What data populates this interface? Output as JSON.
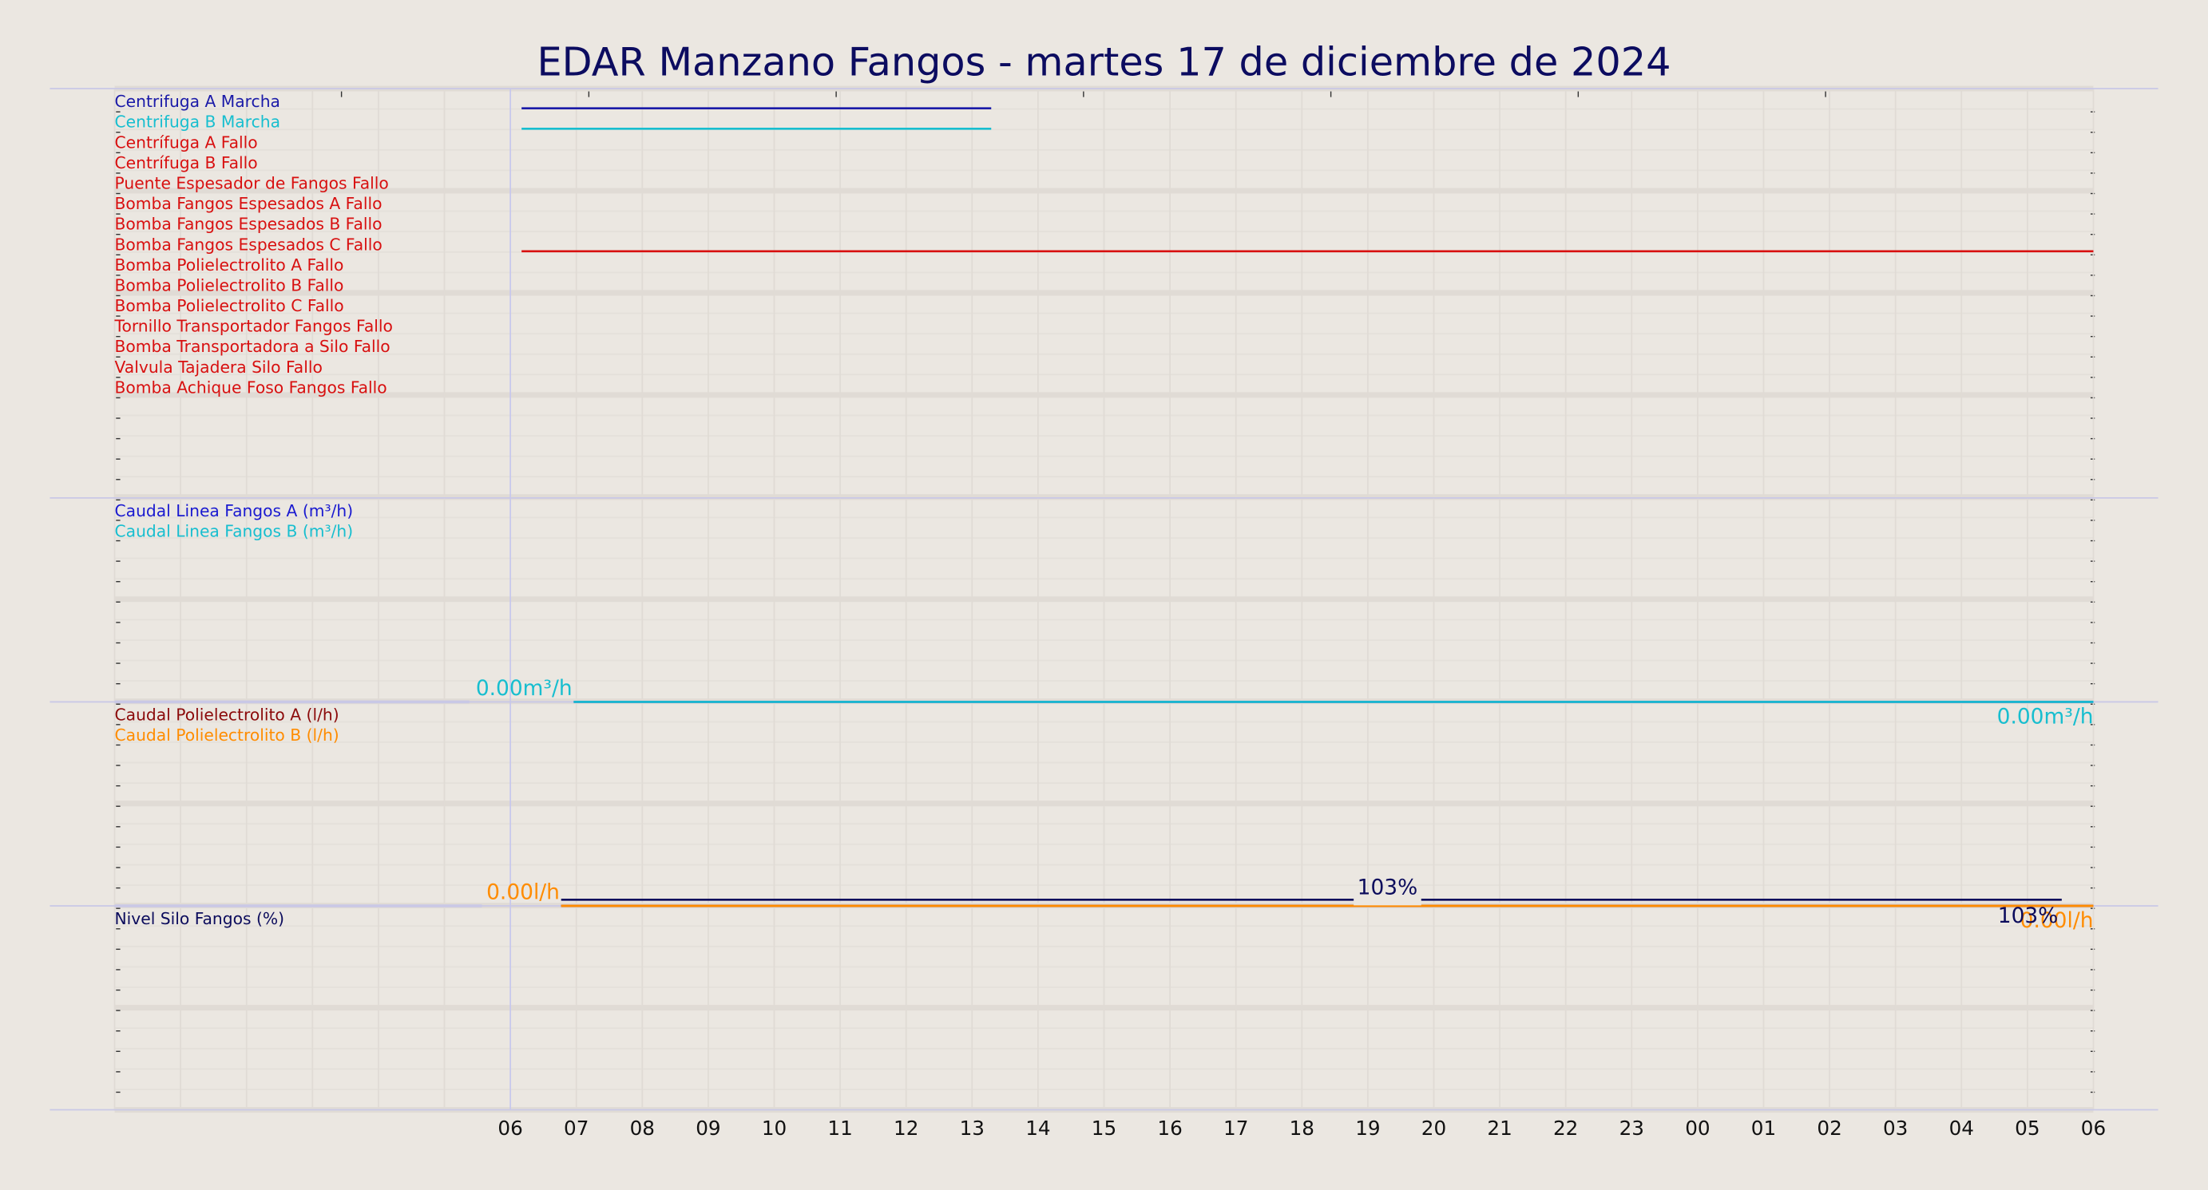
{
  "chart_data": {
    "type": "line",
    "title": "EDAR Manzano Fangos   -   martes 17 de diciembre de 2024",
    "xlim": [
      -6,
      24
    ],
    "xticks": [
      {
        "value": 0,
        "label": "06"
      },
      {
        "value": 1,
        "label": "07"
      },
      {
        "value": 2,
        "label": "08"
      },
      {
        "value": 3,
        "label": "09"
      },
      {
        "value": 4,
        "label": "10"
      },
      {
        "value": 5,
        "label": "11"
      },
      {
        "value": 6,
        "label": "12"
      },
      {
        "value": 7,
        "label": "13"
      },
      {
        "value": 8,
        "label": "14"
      },
      {
        "value": 9,
        "label": "15"
      },
      {
        "value": 10,
        "label": "16"
      },
      {
        "value": 11,
        "label": "17"
      },
      {
        "value": 12,
        "label": "18"
      },
      {
        "value": 13,
        "label": "19"
      },
      {
        "value": 14,
        "label": "20"
      },
      {
        "value": 15,
        "label": "21"
      },
      {
        "value": 16,
        "label": "22"
      },
      {
        "value": 17,
        "label": "23"
      },
      {
        "value": 18,
        "label": "00"
      },
      {
        "value": 19,
        "label": "01"
      },
      {
        "value": 20,
        "label": "02"
      },
      {
        "value": 21,
        "label": "03"
      },
      {
        "value": 22,
        "label": "04"
      },
      {
        "value": 23,
        "label": "05"
      },
      {
        "value": 24,
        "label": "06"
      }
    ],
    "panels": [
      {
        "digital": true,
        "series": [
          {
            "name": "Centrifuga A Marcha",
            "color": "#1a1aa8",
            "x": [
              0.17,
              7.29
            ],
            "values": [
              1,
              1
            ]
          },
          {
            "name": "Centrifuga B Marcha",
            "color": "#17becf",
            "x": [
              0.17,
              7.29
            ],
            "values": [
              1,
              1
            ]
          },
          {
            "name": "Centrífuga A Fallo",
            "color": "#d81010",
            "x": [],
            "values": []
          },
          {
            "name": "Centrífuga B Fallo",
            "color": "#d81010",
            "x": [],
            "values": []
          },
          {
            "name": "Puente Espesador de Fangos Fallo",
            "color": "#d81010",
            "x": [],
            "values": []
          },
          {
            "name": "Bomba Fangos Espesados A Fallo",
            "color": "#d81010",
            "x": [],
            "values": []
          },
          {
            "name": "Bomba Fangos Espesados B Fallo",
            "color": "#d81010",
            "x": [],
            "values": []
          },
          {
            "name": "Bomba Fangos Espesados C Fallo",
            "color": "#d81010",
            "x": [
              0.17,
              24
            ],
            "values": [
              1,
              1
            ]
          },
          {
            "name": "Bomba Polielectrolito A Fallo",
            "color": "#d81010",
            "x": [],
            "values": []
          },
          {
            "name": "Bomba Polielectrolito B Fallo",
            "color": "#d81010",
            "x": [],
            "values": []
          },
          {
            "name": "Bomba Polielectrolito C Fallo",
            "color": "#d81010",
            "x": [],
            "values": []
          },
          {
            "name": "Tornillo Transportador Fangos Fallo",
            "color": "#d81010",
            "x": [],
            "values": []
          },
          {
            "name": "Bomba Transportadora a Silo Fallo",
            "color": "#d81010",
            "x": [],
            "values": []
          },
          {
            "name": "Valvula Tajadera Silo Fallo",
            "color": "#d81010",
            "x": [],
            "values": []
          },
          {
            "name": "Bomba Achique Foso Fangos Fallo",
            "color": "#d81010",
            "x": [],
            "values": []
          }
        ]
      },
      {
        "ylim": [
          0,
          100
        ],
        "series": [
          {
            "name": "Caudal Linea Fangos A (m³/h)",
            "color": "#1a1ad0",
            "x": [
              0.96,
              24
            ],
            "values": [
              0,
              0
            ]
          },
          {
            "name": "Caudal Linea Fangos B (m³/h)",
            "color": "#17becf",
            "x": [
              0.96,
              24
            ],
            "values": [
              0,
              0
            ],
            "value_labels": [
              "0.00m³/h",
              "0.00m³/h"
            ]
          }
        ]
      },
      {
        "ylim": [
          0,
          100
        ],
        "series": [
          {
            "name": "Caudal Polielectrolito A (l/h)",
            "color": "#8b0a0a",
            "x": [
              0.77,
              24
            ],
            "values": [
              0,
              0
            ]
          },
          {
            "name": "Caudal Polielectrolito B (l/h)",
            "color": "#ff8c00",
            "x": [
              0.77,
              24
            ],
            "values": [
              0,
              0
            ],
            "value_labels": [
              "0.00l/h",
              "0.00l/h"
            ]
          }
        ]
      },
      {
        "ylim": [
          0,
          100
        ],
        "series": [
          {
            "name": "Nivel Silo Fangos (%)",
            "color": "#0c0c5c",
            "x": [
              0.77,
              23.52
            ],
            "values": [
              103,
              103
            ],
            "value_labels": [
              "103%",
              "103%"
            ]
          }
        ]
      }
    ]
  }
}
